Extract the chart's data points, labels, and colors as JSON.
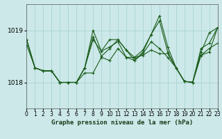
{
  "title": "Graphe pression niveau de la mer (hPa)",
  "bg_color": "#cce8e8",
  "grid_color": "#aad4d4",
  "line_color": "#1a5c1a",
  "xlim": [
    0,
    23
  ],
  "ylim": [
    1017.5,
    1019.5
  ],
  "yticks": [
    1018,
    1019
  ],
  "xticks": [
    0,
    1,
    2,
    3,
    4,
    5,
    6,
    7,
    8,
    9,
    10,
    11,
    12,
    13,
    14,
    15,
    16,
    17,
    18,
    19,
    20,
    21,
    22,
    23
  ],
  "series": [
    [
      1018.72,
      1018.28,
      1018.22,
      1018.22,
      1018.0,
      1018.0,
      1018.0,
      1018.18,
      1018.18,
      1018.48,
      1018.42,
      1018.65,
      1018.48,
      1018.48,
      1018.52,
      1018.62,
      1018.55,
      1018.55,
      1018.28,
      1018.02,
      1018.0,
      1018.52,
      1018.65,
      1018.75
    ],
    [
      1018.82,
      1018.28,
      1018.22,
      1018.22,
      1018.0,
      1018.0,
      1018.0,
      1018.28,
      1018.82,
      1018.6,
      1018.68,
      1018.78,
      1018.48,
      1018.42,
      1018.55,
      1018.78,
      1018.65,
      1018.48,
      1018.28,
      1018.02,
      1018.0,
      1018.58,
      1018.95,
      1019.05
    ],
    [
      1018.82,
      1018.28,
      1018.22,
      1018.22,
      1018.0,
      1018.0,
      1018.0,
      1018.28,
      1018.88,
      1018.5,
      1018.65,
      1018.82,
      1018.62,
      1018.42,
      1018.58,
      1018.92,
      1019.18,
      1018.58,
      1018.28,
      1018.02,
      1018.0,
      1018.52,
      1018.58,
      1019.05
    ],
    [
      1018.82,
      1018.28,
      1018.22,
      1018.22,
      1018.0,
      1018.0,
      1018.0,
      1018.28,
      1019.0,
      1018.6,
      1018.82,
      1018.82,
      1018.62,
      1018.48,
      1018.62,
      1018.92,
      1019.28,
      1018.68,
      1018.28,
      1018.02,
      1018.0,
      1018.65,
      1018.75,
      1019.05
    ]
  ]
}
